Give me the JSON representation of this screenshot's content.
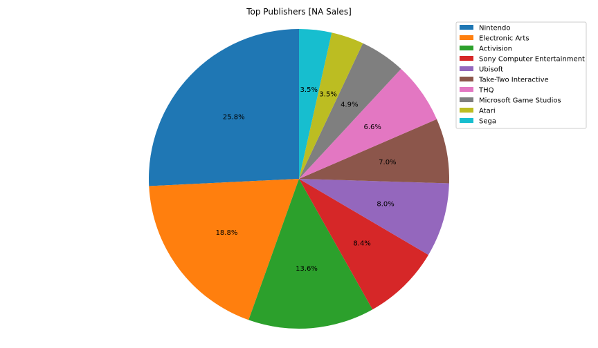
{
  "chart_data": {
    "type": "pie",
    "title": "Top Publishers [NA Sales]",
    "slices": [
      {
        "label": "Nintendo",
        "value": 25.8,
        "display": "25.8%",
        "color": "#1f77b4"
      },
      {
        "label": "Electronic Arts",
        "value": 18.8,
        "display": "18.8%",
        "color": "#ff7f0e"
      },
      {
        "label": "Activision",
        "value": 13.6,
        "display": "13.6%",
        "color": "#2ca02c"
      },
      {
        "label": "Sony Computer Entertainment",
        "value": 8.4,
        "display": "8.4%",
        "color": "#d62728"
      },
      {
        "label": "Ubisoft",
        "value": 8.0,
        "display": "8.0%",
        "color": "#9467bd"
      },
      {
        "label": "Take-Two Interactive",
        "value": 7.0,
        "display": "7.0%",
        "color": "#8c564b"
      },
      {
        "label": "THQ",
        "value": 6.6,
        "display": "6.6%",
        "color": "#e377c2"
      },
      {
        "label": "Microsoft Game Studios",
        "value": 4.9,
        "display": "4.9%",
        "color": "#7f7f7f"
      },
      {
        "label": "Atari",
        "value": 3.5,
        "display": "3.5%",
        "color": "#bcbd22"
      },
      {
        "label": "Sega",
        "value": 3.5,
        "display": "3.5%",
        "color": "#17becf"
      }
    ],
    "start_angle_deg": 90,
    "direction": "counterclockwise",
    "legend": "top-right"
  }
}
